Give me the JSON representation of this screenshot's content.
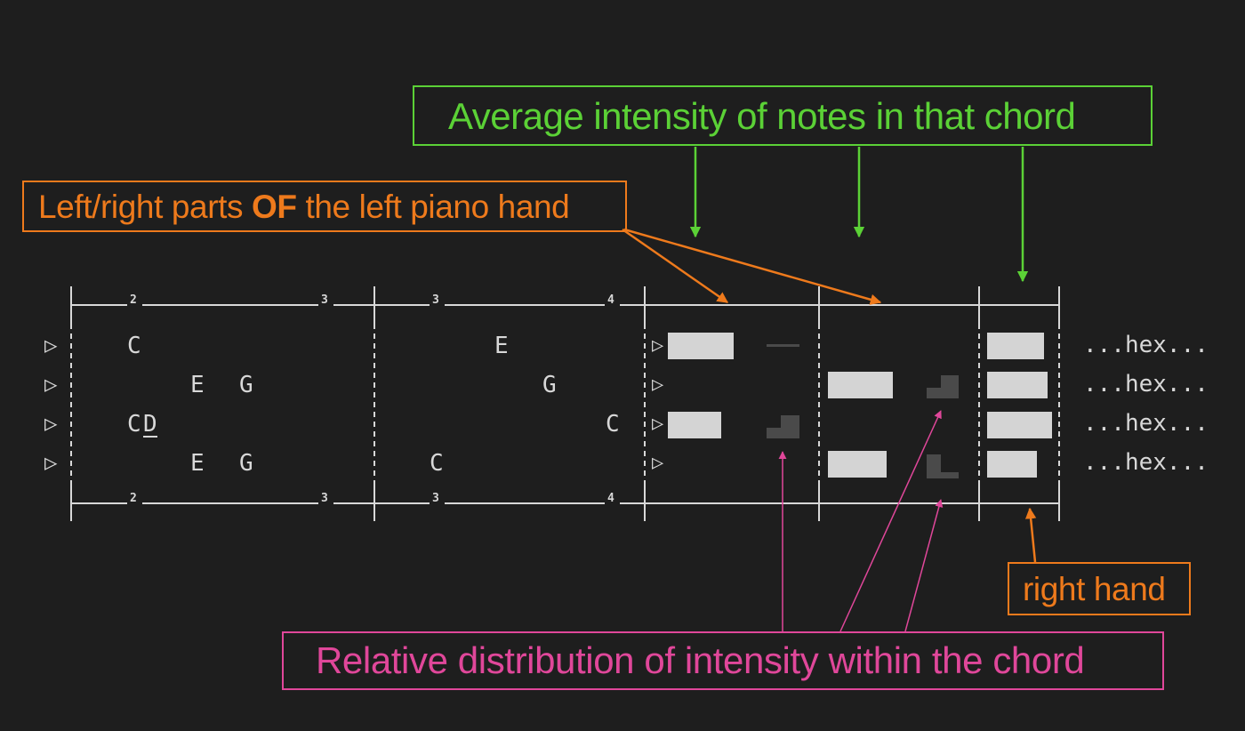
{
  "callouts": {
    "average_intensity": "Average intensity of notes in that chord",
    "left_right_parts_pre": "Left/right parts ",
    "left_right_parts_bold": "OF",
    "left_right_parts_post": " the left piano hand",
    "right_hand": "right hand",
    "relative_distribution": "Relative distribution of intensity within the chord"
  },
  "staff": {
    "triangle": "▷",
    "hex": "...hex...",
    "measure_numbers": [
      "2",
      "3",
      "3",
      "4",
      "2",
      "3",
      "3",
      "4"
    ],
    "notes": [
      "C",
      "E",
      "G",
      "C",
      "D",
      "E",
      "G",
      "E",
      "G",
      "C",
      "C"
    ]
  },
  "colors": {
    "background": "#1e1e1e",
    "green": "#5bd136",
    "orange": "#ee7a1c",
    "pink": "#e0479a",
    "staff": "#d8d8d8",
    "bar": "#d4d4d4",
    "dim_bar": "#4a4a4a"
  }
}
